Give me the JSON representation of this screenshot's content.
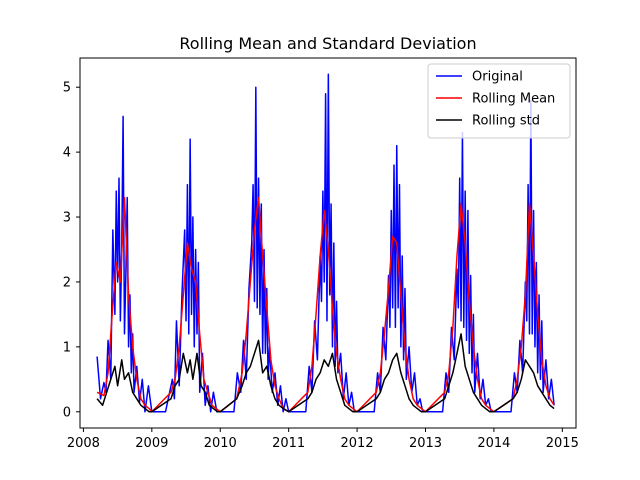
{
  "chart_data": {
    "type": "line",
    "title": "Rolling Mean and Standard Deviation",
    "xlabel": "",
    "ylabel": "",
    "xlim": [
      2007.95,
      2015.2
    ],
    "ylim": [
      -0.25,
      5.45
    ],
    "x_ticks": [
      2008,
      2009,
      2010,
      2011,
      2012,
      2013,
      2014,
      2015
    ],
    "x_tick_labels": [
      "2008",
      "2009",
      "2010",
      "2011",
      "2012",
      "2013",
      "2014",
      "2015"
    ],
    "y_ticks": [
      0,
      1,
      2,
      3,
      4,
      5
    ],
    "y_tick_labels": [
      "0",
      "1",
      "2",
      "3",
      "4",
      "5"
    ],
    "grid": false,
    "legend_position": "top-right",
    "series": [
      {
        "name": "Original",
        "color": "#0000ff",
        "x": [
          2008.2,
          2008.25,
          2008.3,
          2008.33,
          2008.36,
          2008.4,
          2008.43,
          2008.46,
          2008.48,
          2008.5,
          2008.52,
          2008.54,
          2008.56,
          2008.58,
          2008.6,
          2008.62,
          2008.64,
          2008.66,
          2008.68,
          2008.7,
          2008.72,
          2008.74,
          2008.78,
          2008.82,
          2008.86,
          2008.9,
          2008.95,
          2009.0,
          2009.2,
          2009.3,
          2009.33,
          2009.36,
          2009.4,
          2009.44,
          2009.48,
          2009.5,
          2009.52,
          2009.54,
          2009.56,
          2009.58,
          2009.6,
          2009.62,
          2009.64,
          2009.66,
          2009.68,
          2009.7,
          2009.74,
          2009.78,
          2009.82,
          2009.86,
          2009.9,
          2009.95,
          2010.0,
          2010.2,
          2010.25,
          2010.3,
          2010.34,
          2010.38,
          2010.42,
          2010.46,
          2010.48,
          2010.5,
          2010.52,
          2010.54,
          2010.56,
          2010.58,
          2010.6,
          2010.62,
          2010.64,
          2010.66,
          2010.68,
          2010.7,
          2010.72,
          2010.76,
          2010.8,
          2010.84,
          2010.88,
          2010.92,
          2010.96,
          2011.0,
          2011.25,
          2011.3,
          2011.34,
          2011.38,
          2011.42,
          2011.46,
          2011.48,
          2011.5,
          2011.52,
          2011.54,
          2011.56,
          2011.58,
          2011.6,
          2011.62,
          2011.64,
          2011.66,
          2011.68,
          2011.7,
          2011.72,
          2011.76,
          2011.8,
          2011.84,
          2011.88,
          2011.92,
          2011.96,
          2012.0,
          2012.25,
          2012.3,
          2012.34,
          2012.38,
          2012.42,
          2012.46,
          2012.48,
          2012.5,
          2012.52,
          2012.54,
          2012.56,
          2012.58,
          2012.6,
          2012.62,
          2012.64,
          2012.66,
          2012.68,
          2012.7,
          2012.72,
          2012.76,
          2012.8,
          2012.84,
          2012.88,
          2012.92,
          2012.96,
          2013.0,
          2013.25,
          2013.3,
          2013.34,
          2013.38,
          2013.42,
          2013.46,
          2013.48,
          2013.5,
          2013.52,
          2013.54,
          2013.56,
          2013.58,
          2013.6,
          2013.62,
          2013.64,
          2013.66,
          2013.68,
          2013.7,
          2013.72,
          2013.76,
          2013.8,
          2013.84,
          2013.88,
          2013.92,
          2013.96,
          2014.0,
          2014.25,
          2014.3,
          2014.34,
          2014.38,
          2014.42,
          2014.46,
          2014.48,
          2014.5,
          2014.52,
          2014.54,
          2014.56,
          2014.58,
          2014.6,
          2014.62,
          2014.64,
          2014.66,
          2014.68,
          2014.7,
          2014.72,
          2014.76,
          2014.8,
          2014.84,
          2014.88
        ],
        "y": [
          0.85,
          0.2,
          0.45,
          0.3,
          1.1,
          0.5,
          2.8,
          1.5,
          3.4,
          2.0,
          3.6,
          1.4,
          2.5,
          4.55,
          1.2,
          2.1,
          3.3,
          1.0,
          1.8,
          0.6,
          1.2,
          0.3,
          0.7,
          0.15,
          0.5,
          0.0,
          0.4,
          0.0,
          0.0,
          0.5,
          0.2,
          1.4,
          0.4,
          1.8,
          2.8,
          1.4,
          3.5,
          1.2,
          4.2,
          1.5,
          3.0,
          1.0,
          2.5,
          1.2,
          2.3,
          0.3,
          0.9,
          0.1,
          0.4,
          0.0,
          0.3,
          0.0,
          0.0,
          0.0,
          0.6,
          0.3,
          1.1,
          0.5,
          1.9,
          2.6,
          3.5,
          1.7,
          5.0,
          1.6,
          3.6,
          1.5,
          3.2,
          0.9,
          2.5,
          0.9,
          1.9,
          0.5,
          1.0,
          0.3,
          0.6,
          0.1,
          0.4,
          0.0,
          0.2,
          0.0,
          0.0,
          0.7,
          0.3,
          1.4,
          0.8,
          2.4,
          1.7,
          3.4,
          2.0,
          4.9,
          1.4,
          5.2,
          1.8,
          3.2,
          1.0,
          2.6,
          0.7,
          1.7,
          0.6,
          0.9,
          0.2,
          0.6,
          0.1,
          0.3,
          0.0,
          0.0,
          0.0,
          0.6,
          0.3,
          1.3,
          0.8,
          2.1,
          1.3,
          3.1,
          1.6,
          3.8,
          1.3,
          4.1,
          1.6,
          3.5,
          1.0,
          2.4,
          0.8,
          1.9,
          0.5,
          1.0,
          0.3,
          0.6,
          0.1,
          0.2,
          0.0,
          0.0,
          0.0,
          0.6,
          0.3,
          1.3,
          0.8,
          2.2,
          1.6,
          3.6,
          1.4,
          4.3,
          1.3,
          3.4,
          1.1,
          3.1,
          0.9,
          2.1,
          0.6,
          1.5,
          0.3,
          0.9,
          0.2,
          0.5,
          0.1,
          0.2,
          0.0,
          0.0,
          0.0,
          0.6,
          0.3,
          1.1,
          0.6,
          2.0,
          1.4,
          3.5,
          1.2,
          4.8,
          1.2,
          3.1,
          1.0,
          2.3,
          0.6,
          1.8,
          0.5,
          1.4,
          0.3,
          0.8,
          0.2,
          0.5,
          0.1
        ]
      },
      {
        "name": "Rolling Mean",
        "color": "#ff0000",
        "x": [
          2008.2,
          2008.3,
          2008.36,
          2008.42,
          2008.48,
          2008.54,
          2008.6,
          2008.66,
          2008.72,
          2008.78,
          2008.84,
          2008.9,
          2008.96,
          2009.0,
          2009.28,
          2009.34,
          2009.4,
          2009.46,
          2009.52,
          2009.58,
          2009.64,
          2009.7,
          2009.76,
          2009.82,
          2009.88,
          2009.94,
          2010.0,
          2010.24,
          2010.32,
          2010.38,
          2010.44,
          2010.5,
          2010.56,
          2010.62,
          2010.68,
          2010.74,
          2010.8,
          2010.86,
          2010.92,
          2011.0,
          2011.28,
          2011.34,
          2011.4,
          2011.46,
          2011.52,
          2011.58,
          2011.64,
          2011.7,
          2011.76,
          2011.82,
          2011.88,
          2011.94,
          2012.0,
          2012.28,
          2012.34,
          2012.4,
          2012.46,
          2012.52,
          2012.58,
          2012.64,
          2012.7,
          2012.76,
          2012.82,
          2012.88,
          2012.94,
          2013.0,
          2013.28,
          2013.34,
          2013.4,
          2013.46,
          2013.52,
          2013.58,
          2013.64,
          2013.7,
          2013.76,
          2013.82,
          2013.88,
          2013.94,
          2014.0,
          2014.28,
          2014.34,
          2014.4,
          2014.46,
          2014.52,
          2014.58,
          2014.64,
          2014.7,
          2014.76,
          2014.82,
          2014.88
        ],
        "y": [
          0.3,
          0.25,
          0.6,
          1.5,
          2.3,
          2.0,
          3.3,
          1.8,
          1.0,
          0.5,
          0.2,
          0.1,
          0.05,
          0.0,
          0.3,
          0.5,
          1.0,
          1.8,
          2.6,
          2.2,
          2.0,
          1.2,
          0.5,
          0.3,
          0.1,
          0.05,
          0.0,
          0.2,
          0.6,
          1.2,
          2.0,
          2.8,
          3.3,
          2.4,
          1.6,
          0.8,
          0.4,
          0.2,
          0.05,
          0.0,
          0.3,
          0.7,
          1.5,
          2.4,
          3.1,
          2.5,
          1.6,
          0.9,
          0.5,
          0.2,
          0.1,
          0.05,
          0.0,
          0.3,
          0.6,
          1.2,
          1.9,
          2.7,
          2.6,
          1.8,
          1.0,
          0.5,
          0.2,
          0.1,
          0.05,
          0.0,
          0.3,
          0.6,
          1.3,
          2.4,
          3.2,
          2.6,
          1.7,
          1.0,
          0.5,
          0.2,
          0.1,
          0.05,
          0.0,
          0.2,
          0.5,
          1.0,
          1.8,
          3.2,
          2.4,
          1.5,
          0.8,
          0.4,
          0.2,
          0.1
        ]
      },
      {
        "name": "Rolling std",
        "color": "#000000",
        "x": [
          2008.2,
          2008.28,
          2008.34,
          2008.4,
          2008.46,
          2008.5,
          2008.56,
          2008.6,
          2008.66,
          2008.72,
          2008.78,
          2008.84,
          2008.9,
          2008.96,
          2009.0,
          2009.28,
          2009.34,
          2009.4,
          2009.46,
          2009.52,
          2009.56,
          2009.6,
          2009.66,
          2009.72,
          2009.78,
          2009.84,
          2009.9,
          2009.96,
          2010.0,
          2010.24,
          2010.32,
          2010.38,
          2010.44,
          2010.5,
          2010.56,
          2010.62,
          2010.68,
          2010.74,
          2010.8,
          2010.86,
          2010.92,
          2011.0,
          2011.28,
          2011.34,
          2011.4,
          2011.46,
          2011.52,
          2011.58,
          2011.64,
          2011.7,
          2011.76,
          2011.82,
          2011.88,
          2011.94,
          2012.0,
          2012.28,
          2012.34,
          2012.4,
          2012.46,
          2012.52,
          2012.58,
          2012.64,
          2012.7,
          2012.76,
          2012.82,
          2012.88,
          2012.94,
          2013.0,
          2013.28,
          2013.34,
          2013.4,
          2013.46,
          2013.52,
          2013.58,
          2013.64,
          2013.7,
          2013.76,
          2013.82,
          2013.88,
          2013.94,
          2014.0,
          2014.28,
          2014.34,
          2014.4,
          2014.46,
          2014.52,
          2014.58,
          2014.64,
          2014.7,
          2014.76,
          2014.82,
          2014.88
        ],
        "y": [
          0.2,
          0.1,
          0.3,
          0.5,
          0.7,
          0.4,
          0.8,
          0.5,
          0.6,
          0.3,
          0.2,
          0.1,
          0.05,
          0.0,
          0.0,
          0.2,
          0.4,
          0.5,
          0.9,
          0.6,
          0.8,
          0.5,
          0.9,
          0.4,
          0.3,
          0.1,
          0.05,
          0.0,
          0.0,
          0.2,
          0.4,
          0.6,
          0.7,
          0.9,
          1.1,
          0.6,
          0.7,
          0.4,
          0.2,
          0.1,
          0.05,
          0.0,
          0.2,
          0.3,
          0.5,
          0.6,
          0.8,
          0.7,
          0.9,
          0.5,
          0.3,
          0.1,
          0.05,
          0.0,
          0.0,
          0.2,
          0.3,
          0.5,
          0.6,
          0.8,
          0.9,
          0.6,
          0.4,
          0.2,
          0.1,
          0.05,
          0.0,
          0.0,
          0.2,
          0.4,
          0.6,
          0.9,
          1.2,
          0.7,
          0.5,
          0.3,
          0.2,
          0.1,
          0.05,
          0.0,
          0.0,
          0.2,
          0.3,
          0.5,
          0.8,
          0.7,
          0.6,
          0.4,
          0.3,
          0.2,
          0.1,
          0.05
        ]
      }
    ]
  }
}
